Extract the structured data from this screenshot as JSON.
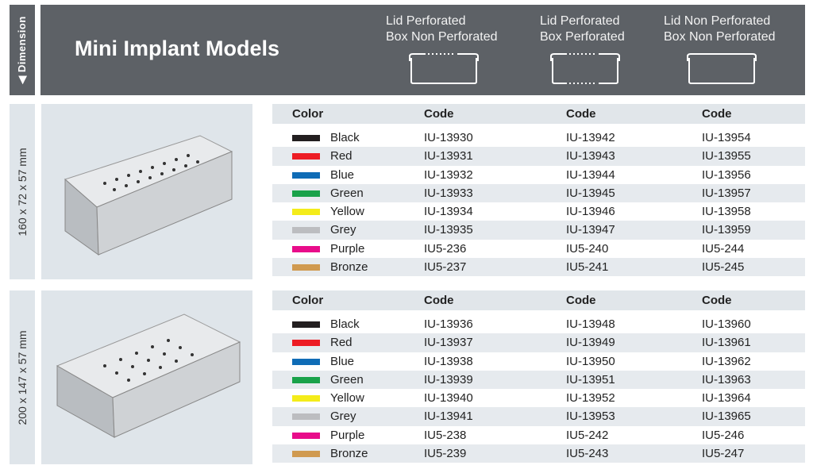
{
  "dimension_label": "Dimension",
  "title": "Mini Implant Models",
  "variants": [
    {
      "line1": "Lid Perforated",
      "line2": "Box Non Perforated",
      "icon": "box-lid-perforated-icon"
    },
    {
      "line1": "Lid Perforated",
      "line2": "Box Perforated",
      "icon": "box-all-perforated-icon"
    },
    {
      "line1": "Lid Non Perforated",
      "line2": "Box Non Perforated",
      "icon": "box-non-perforated-icon"
    }
  ],
  "headers": {
    "color": "Color",
    "code": "Code"
  },
  "sections": [
    {
      "dimension": "160 x 72 x 57 mm",
      "rows": [
        {
          "color": "Black",
          "hex": "#231f20",
          "codes": [
            "IU-13930",
            "IU-13942",
            "IU-13954"
          ]
        },
        {
          "color": "Red",
          "hex": "#ed1c24",
          "codes": [
            "IU-13931",
            "IU-13943",
            "IU-13955"
          ]
        },
        {
          "color": "Blue",
          "hex": "#0f6cb6",
          "codes": [
            "IU-13932",
            "IU-13944",
            "IU-13956"
          ]
        },
        {
          "color": "Green",
          "hex": "#1aa24a",
          "codes": [
            "IU-13933",
            "IU-13945",
            "IU-13957"
          ]
        },
        {
          "color": "Yellow",
          "hex": "#f4ec1a",
          "codes": [
            "IU-13934",
            "IU-13946",
            "IU-13958"
          ]
        },
        {
          "color": "Grey",
          "hex": "#bcbdc0",
          "codes": [
            "IU-13935",
            "IU-13947",
            "IU-13959"
          ]
        },
        {
          "color": "Purple",
          "hex": "#e80c8a",
          "codes": [
            "IU5-236",
            "IU5-240",
            "IU5-244"
          ]
        },
        {
          "color": "Bronze",
          "hex": "#d09a50",
          "codes": [
            "IU5-237",
            "IU5-241",
            "IU5-245"
          ]
        }
      ]
    },
    {
      "dimension": "200 x 147 x 57 mm",
      "rows": [
        {
          "color": "Black",
          "hex": "#231f20",
          "codes": [
            "IU-13936",
            "IU-13948",
            "IU-13960"
          ]
        },
        {
          "color": "Red",
          "hex": "#ed1c24",
          "codes": [
            "IU-13937",
            "IU-13949",
            "IU-13961"
          ]
        },
        {
          "color": "Blue",
          "hex": "#0f6cb6",
          "codes": [
            "IU-13938",
            "IU-13950",
            "IU-13962"
          ]
        },
        {
          "color": "Green",
          "hex": "#1aa24a",
          "codes": [
            "IU-13939",
            "IU-13951",
            "IU-13963"
          ]
        },
        {
          "color": "Yellow",
          "hex": "#f4ec1a",
          "codes": [
            "IU-13940",
            "IU-13952",
            "IU-13964"
          ]
        },
        {
          "color": "Grey",
          "hex": "#bcbdc0",
          "codes": [
            "IU-13941",
            "IU-13953",
            "IU-13965"
          ]
        },
        {
          "color": "Purple",
          "hex": "#e80c8a",
          "codes": [
            "IU5-238",
            "IU5-242",
            "IU5-246"
          ]
        },
        {
          "color": "Bronze",
          "hex": "#d09a50",
          "codes": [
            "IU5-239",
            "IU5-243",
            "IU5-247"
          ]
        }
      ]
    }
  ]
}
